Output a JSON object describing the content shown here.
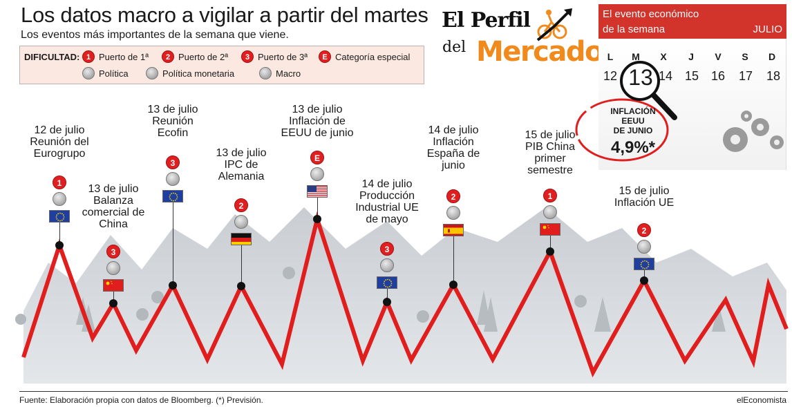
{
  "header": {
    "title": "Los datos macro a vigilar a partir del martes",
    "subtitle": "Los eventos más importantes de la semana que viene."
  },
  "legend": {
    "label": "DIFICULTAD:",
    "items": [
      {
        "badge": "1",
        "text": "Puerto de 1ª"
      },
      {
        "badge": "2",
        "text": "Puerto de 2ª"
      },
      {
        "badge": "3",
        "text": "Puerto de 3ª"
      },
      {
        "badge": "E",
        "text": "Categoría especial"
      },
      {
        "icon": "politics-icon",
        "text": "Política"
      },
      {
        "icon": "monetary-policy-icon",
        "text": "Política monetaria"
      },
      {
        "icon": "macro-icon",
        "text": "Macro"
      }
    ]
  },
  "brand": {
    "line1": "El Perfil",
    "line2": "del",
    "line3": "Mercado"
  },
  "calendar": {
    "header_line1": "El evento económico",
    "header_line2": "de la semana",
    "month": "JULIO",
    "days": [
      "L",
      "M",
      "X",
      "J",
      "V",
      "S",
      "D"
    ],
    "numbers": [
      "12",
      "13",
      "14",
      "15",
      "16",
      "17",
      "18"
    ],
    "highlight": "13",
    "event_label_1": "INFLACIÓN",
    "event_label_2": "EEUU",
    "event_label_3": "DE JUNIO",
    "event_value": "4,9%*"
  },
  "events": [
    {
      "lines": [
        "12 de julio",
        "Reunión del",
        "Eurogrupo"
      ],
      "badge": "1",
      "icon": "politics-icon",
      "flag": "eu"
    },
    {
      "lines": [
        "13 de julio",
        "Balanza",
        "comercial de",
        "China"
      ],
      "badge": "3",
      "icon": "macro-icon",
      "flag": "china"
    },
    {
      "lines": [
        "13 de julio",
        "Reunión",
        "Ecofin"
      ],
      "badge": "3",
      "icon": "macro-icon",
      "flag": "eu"
    },
    {
      "lines": [
        "13 de julio",
        "IPC de",
        "Alemania"
      ],
      "badge": "2",
      "icon": "macro-icon",
      "flag": "germany"
    },
    {
      "lines": [
        "13 de julio",
        "Inflación de",
        "EEUU de junio"
      ],
      "badge": "E",
      "icon": "macro-icon",
      "flag": "usa"
    },
    {
      "lines": [
        "14 de julio",
        "Producción",
        "Industrial UE",
        "de mayo"
      ],
      "badge": "3",
      "icon": "macro-icon",
      "flag": "eu"
    },
    {
      "lines": [
        "14 de julio",
        "Inflación",
        "España de",
        "junio"
      ],
      "badge": "2",
      "icon": "macro-icon",
      "flag": "spain"
    },
    {
      "lines": [
        "15 de julio",
        "PIB China",
        "primer",
        "semestre"
      ],
      "badge": "1",
      "icon": "macro-icon",
      "flag": "china"
    },
    {
      "lines": [
        "15 de julio",
        "Inflación UE"
      ],
      "badge": "2",
      "icon": "macro-icon",
      "flag": "eu"
    }
  ],
  "colors": {
    "route": "#e01e1e",
    "badge": "#e02020",
    "brand_orange": "#f08a1c",
    "calendar_red": "#d2332a"
  },
  "footer": {
    "source": "Fuente: Elaboración propia con datos de Bloomberg. (*) Previsión.",
    "credit": "elEconomista"
  }
}
